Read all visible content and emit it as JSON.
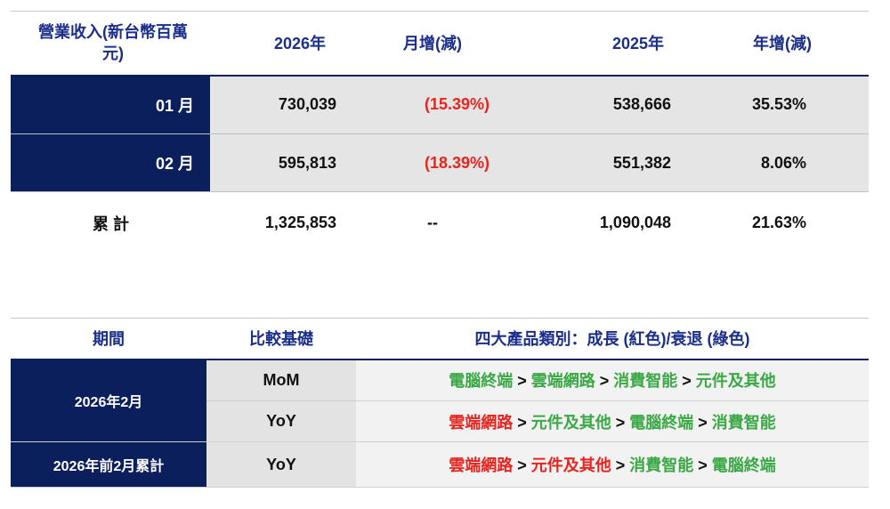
{
  "revenue_table": {
    "headers": [
      "營業收入(新台幣百萬元)",
      "2026年",
      "月增(減)",
      "2025年",
      "年增(減)"
    ],
    "rows": [
      {
        "label": "01 月",
        "y2026": "730,039",
        "mom": "(15.39%)",
        "y2025": "538,666",
        "yoy": "35.53%"
      },
      {
        "label": "02 月",
        "y2026": "595,813",
        "mom": "(18.39%)",
        "y2025": "551,382",
        "yoy": "8.06%"
      }
    ],
    "total": {
      "label": "累 計",
      "y2026": "1,325,853",
      "mom": "--",
      "y2025": "1,090,048",
      "yoy": "21.63%"
    }
  },
  "product_table": {
    "headers": [
      "期間",
      "比較基礎",
      "四大產品類別：成長 (紅色)/衰退 (綠色)"
    ],
    "rows": [
      {
        "period": "2026年2月",
        "basis": "MoM",
        "items": [
          {
            "t": "電腦終端",
            "c": "green"
          },
          {
            "t": "雲端網路",
            "c": "green"
          },
          {
            "t": "消費智能",
            "c": "green"
          },
          {
            "t": "元件及其他",
            "c": "green"
          }
        ]
      },
      {
        "basis": "YoY",
        "items": [
          {
            "t": "雲端網路",
            "c": "red"
          },
          {
            "t": "元件及其他",
            "c": "green"
          },
          {
            "t": "電腦終端",
            "c": "green"
          },
          {
            "t": "消費智能",
            "c": "green"
          }
        ]
      },
      {
        "period": "2026年前2月累計",
        "basis": "YoY",
        "items": [
          {
            "t": "雲端網路",
            "c": "red"
          },
          {
            "t": "元件及其他",
            "c": "red"
          },
          {
            "t": "消費智能",
            "c": "green"
          },
          {
            "t": "電腦終端",
            "c": "green"
          }
        ]
      }
    ],
    "separator": ">"
  },
  "colors": {
    "navy": "#0b1f5c",
    "growth": "#e8241f",
    "decline": "#3aa845",
    "header_text": "#1b2f8a"
  }
}
